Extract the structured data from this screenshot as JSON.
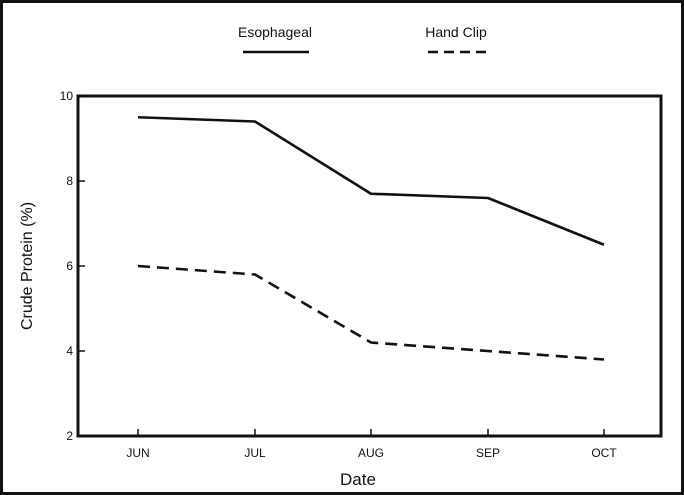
{
  "chart_data": {
    "type": "line",
    "title": "",
    "xlabel": "Date",
    "ylabel": "Crude Protein (%)",
    "categories": [
      "JUN",
      "JUL",
      "AUG",
      "SEP",
      "OCT"
    ],
    "ylim": [
      2,
      10
    ],
    "yticks": [
      2,
      4,
      6,
      8,
      10
    ],
    "legend_position": "top",
    "grid": false,
    "series": [
      {
        "name": "Esophageal",
        "style": "solid",
        "values": [
          9.5,
          9.4,
          7.7,
          7.6,
          6.5
        ]
      },
      {
        "name": "Hand Clip",
        "style": "dashed",
        "values": [
          6.0,
          5.8,
          4.2,
          4.0,
          3.8
        ]
      }
    ],
    "colors": {
      "line": "#111111",
      "axis": "#111111"
    }
  }
}
